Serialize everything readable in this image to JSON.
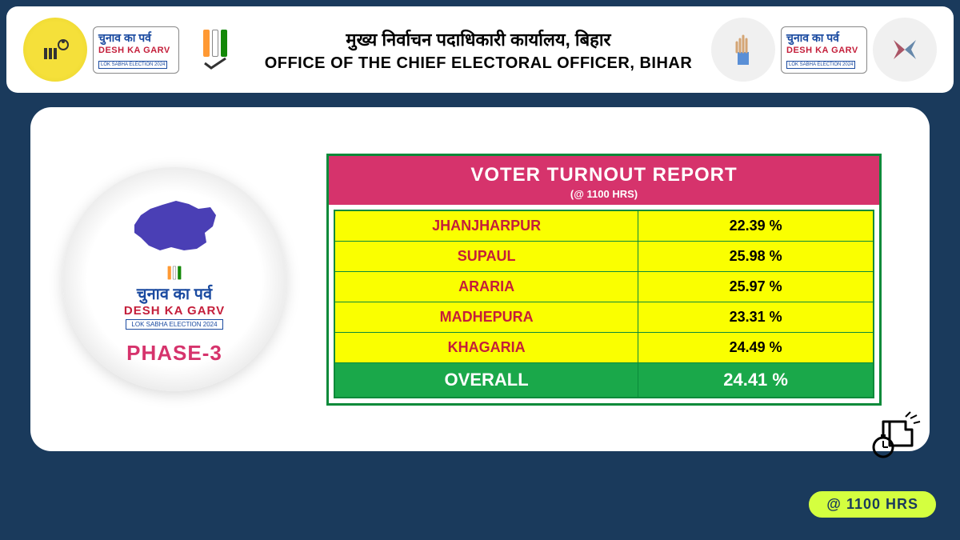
{
  "header": {
    "title_hindi": "मुख्य निर्वाचन पदाधिकारी कार्यालय, बिहार",
    "title_en": "OFFICE OF THE CHIEF ELECTORAL OFFICER, BIHAR",
    "desh_hindi": "चुनाव का पर्व",
    "desh_en": "DESH KA GARV",
    "desh_sub": "LOK SABHA ELECTION 2024",
    "eci_colors": {
      "saffron": "#ff9933",
      "white": "#ffffff",
      "green": "#138808",
      "border": "#333"
    }
  },
  "phase": {
    "hindi": "चुनाव का पर्व",
    "en": "DESH KA GARV",
    "sub": "LOK SABHA ELECTION 2024",
    "label": "PHASE-3",
    "map_fill": "#4a3fb5"
  },
  "report": {
    "title": "VOTER TURNOUT REPORT",
    "subtitle": "(@ 1100 HRS)",
    "header_bg": "#d6336c",
    "row_bg": "#faff00",
    "overall_bg": "#1aa84a",
    "border_color": "#0a8a3a",
    "name_color": "#c41e3a",
    "rows": [
      {
        "name": "JHANJHARPUR",
        "value": "22.39 %"
      },
      {
        "name": "SUPAUL",
        "value": "25.98 %"
      },
      {
        "name": "ARARIA",
        "value": "25.97 %"
      },
      {
        "name": "MADHEPURA",
        "value": "23.31 %"
      },
      {
        "name": "KHAGARIA",
        "value": "24.49 %"
      }
    ],
    "overall": {
      "name": "OVERALL",
      "value": "24.41 %"
    }
  },
  "time_pill": "@ 1100 HRS",
  "colors": {
    "frame_bg": "#1a3a5c",
    "panel_bg": "#ffffff"
  }
}
